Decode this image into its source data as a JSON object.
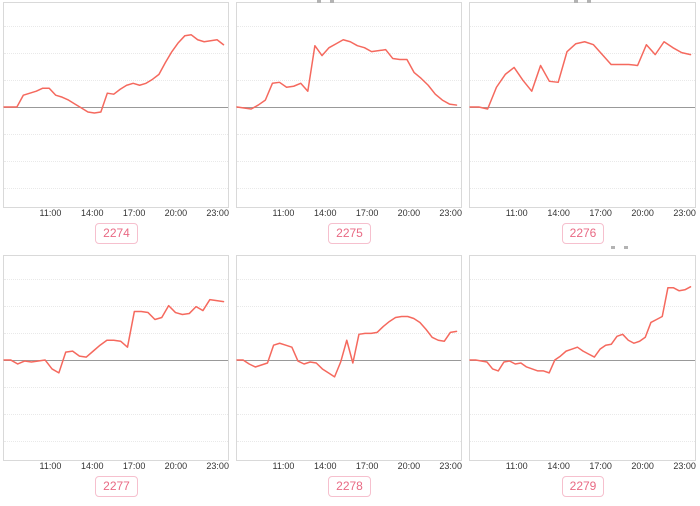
{
  "style": {
    "line_color": "#f5695e",
    "zero_line_color": "#999999",
    "grid_color": "#e9e9e9",
    "plot_border_color": "#d9d9d9",
    "tick_text_color": "#333333",
    "badge_text_color": "#e96a84",
    "badge_border_color": "#f6c0ce",
    "badge_bg_color": "#ffffff",
    "page_bg_color": "#ffffff"
  },
  "notes": {
    "values_scale": "relative units around the gray zero baseline; 100 = distance from baseline to chart top edge",
    "grid": "7 faint dotted horizontal gridlines per chart, middle one is a solid gray zero baseline",
    "legend": "none",
    "y_axis_labels": "none"
  },
  "chart_data": [
    {
      "type": "line",
      "label": "2274",
      "baseline": 0,
      "has_clipped_title": false,
      "x_ticks": [
        "11:00",
        "14:00",
        "17:00",
        "20:00",
        "23:00"
      ],
      "values": [
        0,
        0,
        0,
        12,
        14,
        16,
        19,
        19,
        12,
        10,
        7,
        3,
        -1,
        -5,
        -6,
        -5,
        14,
        13,
        18,
        22,
        24,
        22,
        24,
        28,
        33,
        45,
        56,
        65,
        72,
        73,
        68,
        66,
        67,
        68,
        63
      ]
    },
    {
      "type": "line",
      "label": "2275",
      "baseline": 0,
      "has_clipped_title": true,
      "x_ticks": [
        "11:00",
        "14:00",
        "17:00",
        "20:00",
        "23:00"
      ],
      "values": [
        0,
        -1,
        -2,
        2,
        7,
        24,
        25,
        20,
        21,
        24,
        16,
        62,
        52,
        60,
        64,
        68,
        66,
        62,
        60,
        56,
        57,
        58,
        49,
        48,
        48,
        35,
        29,
        22,
        13,
        7,
        3,
        2
      ]
    },
    {
      "type": "line",
      "label": "2276",
      "baseline": 0,
      "has_clipped_title": true,
      "x_ticks": [
        "11:00",
        "14:00",
        "17:00",
        "20:00",
        "23:00"
      ],
      "values": [
        0,
        0,
        -2,
        20,
        33,
        40,
        27,
        16,
        42,
        26,
        25,
        56,
        64,
        66,
        63,
        53,
        43,
        43,
        43,
        42,
        63,
        53,
        66,
        60,
        55,
        53
      ]
    },
    {
      "type": "line",
      "label": "2277",
      "baseline": 0,
      "has_clipped_title": false,
      "x_ticks": [
        "11:00",
        "14:00",
        "17:00",
        "20:00",
        "23:00"
      ],
      "values": [
        0,
        0,
        -4,
        -1,
        -2,
        -1,
        0,
        -9,
        -13,
        8,
        9,
        4,
        3,
        9,
        15,
        20,
        20,
        19,
        13,
        49,
        49,
        48,
        41,
        43,
        55,
        48,
        46,
        47,
        54,
        50,
        61,
        60,
        59
      ]
    },
    {
      "type": "line",
      "label": "2278",
      "baseline": 0,
      "has_clipped_title": false,
      "x_ticks": [
        "11:00",
        "14:00",
        "17:00",
        "20:00",
        "23:00"
      ],
      "values": [
        0,
        0,
        -4,
        -7,
        -5,
        -3,
        15,
        17,
        15,
        13,
        -1,
        -4,
        -2,
        -3,
        -9,
        -13,
        -17,
        -2,
        20,
        -3,
        26,
        27,
        27,
        28,
        34,
        39,
        43,
        44,
        44,
        42,
        38,
        31,
        23,
        20,
        19,
        28,
        29
      ]
    },
    {
      "type": "line",
      "label": "2279",
      "baseline": 0,
      "has_clipped_title": true,
      "x_ticks": [
        "11:00",
        "14:00",
        "17:00",
        "20:00",
        "23:00"
      ],
      "values": [
        0,
        0,
        -1,
        -2,
        -9,
        -11,
        -2,
        -1,
        -4,
        -3,
        -7,
        -9,
        -11,
        -11,
        -13,
        0,
        4,
        9,
        11,
        13,
        9,
        6,
        3,
        11,
        15,
        16,
        24,
        26,
        20,
        17,
        19,
        23,
        38,
        41,
        44,
        73,
        73,
        70,
        71,
        74
      ]
    }
  ]
}
